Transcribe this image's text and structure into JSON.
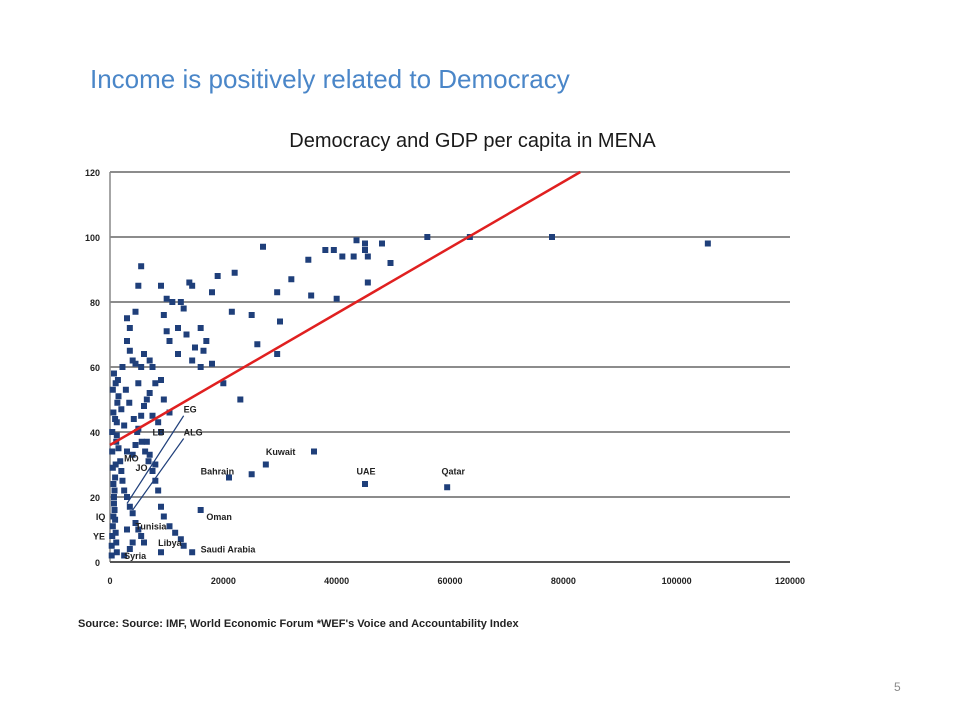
{
  "slide": {
    "title": "Income is positively related to Democracy",
    "page_number": "5"
  },
  "chart_data": {
    "type": "scatter",
    "title": "Democracy and GDP per capita in MENA",
    "xlabel": "",
    "ylabel": "",
    "xlim": [
      0,
      120000
    ],
    "ylim": [
      0,
      120
    ],
    "x_ticks": [
      "0",
      "20000",
      "40000",
      "60000",
      "80000",
      "100000",
      "120000"
    ],
    "y_ticks": [
      "0",
      "20",
      "40",
      "60",
      "80",
      "100",
      "120"
    ],
    "grid": true,
    "colors": {
      "points": "#1f3f7a",
      "trend": "#e02020",
      "grid": "#8c8c8c"
    },
    "trend_line": {
      "x": [
        0,
        83000
      ],
      "y": [
        36,
        120
      ]
    },
    "points": [
      [
        56000,
        100
      ],
      [
        63500,
        100
      ],
      [
        78000,
        100
      ],
      [
        105500,
        98
      ],
      [
        43500,
        99
      ],
      [
        45000,
        96
      ],
      [
        38000,
        96
      ],
      [
        39500,
        96
      ],
      [
        41000,
        94
      ],
      [
        43000,
        94
      ],
      [
        45500,
        94
      ],
      [
        45000,
        98
      ],
      [
        48000,
        98
      ],
      [
        49500,
        92
      ],
      [
        35000,
        93
      ],
      [
        32000,
        87
      ],
      [
        29500,
        83
      ],
      [
        27000,
        97
      ],
      [
        25000,
        76
      ],
      [
        21500,
        77
      ],
      [
        22000,
        89
      ],
      [
        19000,
        88
      ],
      [
        18000,
        83
      ],
      [
        14000,
        86
      ],
      [
        14500,
        85
      ],
      [
        12500,
        80
      ],
      [
        11000,
        80
      ],
      [
        10000,
        81
      ],
      [
        9500,
        76
      ],
      [
        9000,
        85
      ],
      [
        5500,
        91
      ],
      [
        5000,
        85
      ],
      [
        4500,
        77
      ],
      [
        3500,
        72
      ],
      [
        3000,
        75
      ],
      [
        3000,
        68
      ],
      [
        3500,
        65
      ],
      [
        4000,
        62
      ],
      [
        4500,
        61
      ],
      [
        5500,
        60
      ],
      [
        5000,
        55
      ],
      [
        6000,
        64
      ],
      [
        7000,
        62
      ],
      [
        7500,
        60
      ],
      [
        8000,
        55
      ],
      [
        7000,
        52
      ],
      [
        6500,
        50
      ],
      [
        6000,
        48
      ],
      [
        5500,
        45
      ],
      [
        5000,
        41
      ],
      [
        4500,
        36
      ],
      [
        4000,
        33
      ],
      [
        3000,
        34
      ],
      [
        2500,
        42
      ],
      [
        2000,
        47
      ],
      [
        1500,
        51
      ],
      [
        1000,
        55
      ],
      [
        700,
        58
      ],
      [
        500,
        53
      ],
      [
        600,
        46
      ],
      [
        900,
        44
      ],
      [
        1200,
        39
      ],
      [
        1500,
        35
      ],
      [
        1800,
        31
      ],
      [
        2000,
        28
      ],
      [
        2200,
        25
      ],
      [
        2500,
        22
      ],
      [
        3000,
        20
      ],
      [
        3500,
        17
      ],
      [
        4000,
        15
      ],
      [
        4500,
        12
      ],
      [
        5000,
        10
      ],
      [
        5500,
        8
      ],
      [
        6000,
        6
      ],
      [
        400,
        40
      ],
      [
        400,
        34
      ],
      [
        500,
        29
      ],
      [
        600,
        24
      ],
      [
        700,
        20
      ],
      [
        800,
        16
      ],
      [
        900,
        13
      ],
      [
        1000,
        9
      ],
      [
        1100,
        6
      ],
      [
        1200,
        3
      ],
      [
        300,
        2
      ],
      [
        300,
        5
      ],
      [
        400,
        8
      ],
      [
        500,
        11
      ],
      [
        600,
        14
      ],
      [
        700,
        18
      ],
      [
        800,
        22
      ],
      [
        900,
        26
      ],
      [
        1000,
        30
      ],
      [
        1100,
        37
      ],
      [
        1200,
        43
      ],
      [
        1300,
        49
      ],
      [
        1400,
        56
      ],
      [
        2200,
        60
      ],
      [
        2800,
        53
      ],
      [
        3400,
        49
      ],
      [
        4200,
        44
      ],
      [
        4800,
        40
      ],
      [
        5600,
        37
      ],
      [
        6200,
        34
      ],
      [
        6800,
        31
      ],
      [
        7500,
        28
      ],
      [
        8000,
        25
      ],
      [
        8500,
        22
      ],
      [
        9000,
        17
      ],
      [
        9500,
        14
      ],
      [
        10500,
        11
      ],
      [
        11500,
        9
      ],
      [
        12500,
        7
      ],
      [
        13000,
        5
      ],
      [
        12000,
        72
      ],
      [
        13500,
        70
      ],
      [
        16000,
        72
      ],
      [
        16500,
        65
      ],
      [
        17000,
        68
      ],
      [
        18000,
        61
      ],
      [
        14500,
        62
      ],
      [
        12000,
        64
      ],
      [
        10500,
        68
      ],
      [
        10000,
        71
      ],
      [
        13000,
        78
      ],
      [
        15000,
        66
      ],
      [
        16000,
        60
      ],
      [
        20000,
        55
      ],
      [
        23000,
        50
      ],
      [
        26000,
        67
      ],
      [
        29500,
        64
      ],
      [
        30000,
        74
      ],
      [
        35500,
        82
      ],
      [
        40000,
        81
      ],
      [
        45500,
        86
      ],
      [
        36000,
        34
      ],
      [
        27500,
        30
      ],
      [
        25000,
        27
      ],
      [
        21000,
        26
      ],
      [
        16000,
        16
      ],
      [
        45000,
        24
      ],
      [
        59500,
        23
      ],
      [
        9000,
        3
      ],
      [
        14500,
        3
      ],
      [
        9000,
        56
      ],
      [
        9500,
        50
      ],
      [
        10500,
        46
      ],
      [
        8500,
        43
      ],
      [
        9000,
        40
      ],
      [
        8000,
        30
      ],
      [
        7000,
        33
      ],
      [
        6500,
        37
      ],
      [
        7500,
        45
      ],
      [
        2500,
        2
      ],
      [
        3500,
        4
      ],
      [
        4000,
        6
      ],
      [
        3000,
        10
      ]
    ],
    "annotations": [
      {
        "text": "EG",
        "x": 13000,
        "y": 46
      },
      {
        "text": "ALG",
        "x": 13000,
        "y": 39
      },
      {
        "text": "LB",
        "x": 7500,
        "y": 39
      },
      {
        "text": "MO",
        "x": 2500,
        "y": 31
      },
      {
        "text": "JO",
        "x": 4500,
        "y": 28
      },
      {
        "text": "Kuwait",
        "x": 27500,
        "y": 33
      },
      {
        "text": "Bahrain",
        "x": 16000,
        "y": 27
      },
      {
        "text": "UAE",
        "x": 43500,
        "y": 27
      },
      {
        "text": "Qatar",
        "x": 58500,
        "y": 27
      },
      {
        "text": "IQ",
        "x": -2500,
        "y": 13
      },
      {
        "text": "Oman",
        "x": 17000,
        "y": 13
      },
      {
        "text": "Tunisia",
        "x": 4500,
        "y": 10
      },
      {
        "text": "YE",
        "x": -3000,
        "y": 7
      },
      {
        "text": "Libya",
        "x": 8500,
        "y": 5
      },
      {
        "text": "Saudi Arabia",
        "x": 16000,
        "y": 3
      },
      {
        "text": "Syria",
        "x": 2500,
        "y": 1
      }
    ],
    "leader_lines": [
      {
        "x1": 13000,
        "y1": 45,
        "x2": 3000,
        "y2": 18
      },
      {
        "x1": 13000,
        "y1": 38,
        "x2": 4000,
        "y2": 16
      }
    ],
    "source": "Source: Source: IMF, World Economic Forum *WEF's Voice and Accountability Index"
  }
}
